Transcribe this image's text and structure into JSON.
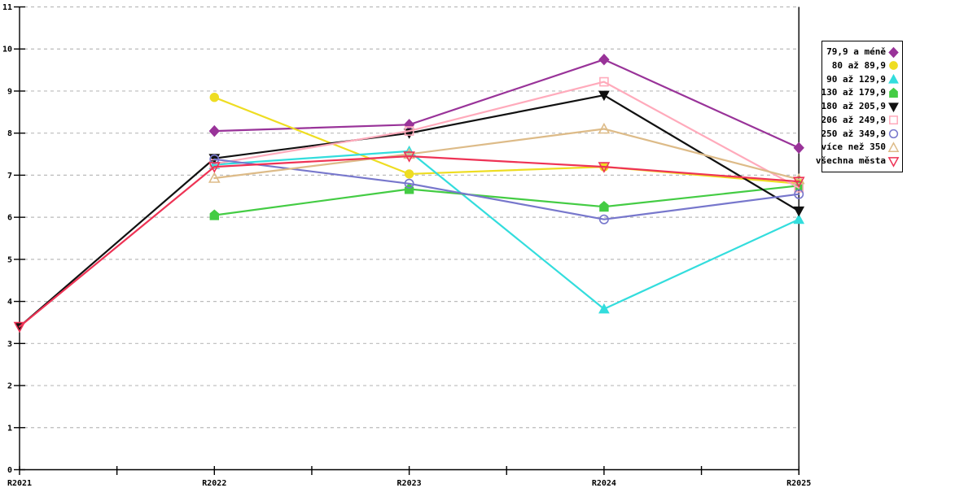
{
  "chart_data": {
    "type": "line",
    "title": "",
    "xlabel": "",
    "ylabel": "",
    "x_labels": [
      "R2021",
      "R2022",
      "R2023",
      "R2024",
      "R2025"
    ],
    "ylim": [
      0,
      11
    ],
    "yticks": [
      0,
      1,
      2,
      3,
      4,
      5,
      6,
      7,
      8,
      9,
      10,
      11
    ],
    "grid": "horizontal-dashed",
    "grid_color": "#bbbbbb",
    "axis_color": "#000000",
    "legend_position": "right-outside",
    "series": [
      {
        "name": "79,9 a méně",
        "color": "#993399",
        "marker": "diamond",
        "fill": "filled",
        "values": [
          null,
          8.05,
          8.2,
          9.75,
          7.65
        ]
      },
      {
        "name": "80 až 89,9",
        "color": "#EEDD22",
        "marker": "circle",
        "fill": "filled",
        "values": [
          null,
          8.85,
          7.03,
          7.2,
          6.8
        ]
      },
      {
        "name": "90 až 129,9",
        "color": "#33DDDD",
        "marker": "triangle-up",
        "fill": "filled",
        "values": [
          null,
          7.25,
          7.57,
          3.82,
          5.95
        ]
      },
      {
        "name": "130 až 179,9",
        "color": "#44CC44",
        "marker": "pentagon",
        "fill": "filled",
        "values": [
          null,
          6.05,
          6.67,
          6.25,
          6.75
        ]
      },
      {
        "name": "180 až 205,9",
        "color": "#111111",
        "marker": "triangle-down",
        "fill": "filled",
        "values": [
          3.4,
          7.4,
          8.0,
          8.9,
          6.15
        ]
      },
      {
        "name": "206 až 249,9",
        "color": "#FFAABB",
        "marker": "square",
        "fill": "open",
        "values": [
          null,
          7.27,
          8.05,
          9.22,
          6.7
        ]
      },
      {
        "name": "250 až 349,9",
        "color": "#7777CC",
        "marker": "circle",
        "fill": "open",
        "values": [
          null,
          7.38,
          6.8,
          5.95,
          6.55
        ]
      },
      {
        "name": "více než 350",
        "color": "#DDBB88",
        "marker": "triangle-up",
        "fill": "open",
        "values": [
          null,
          6.93,
          7.5,
          8.1,
          6.9
        ]
      },
      {
        "name": "všechna města",
        "color": "#EE3355",
        "marker": "triangle-down",
        "fill": "open",
        "values": [
          3.4,
          7.2,
          7.45,
          7.2,
          6.85
        ]
      }
    ]
  }
}
